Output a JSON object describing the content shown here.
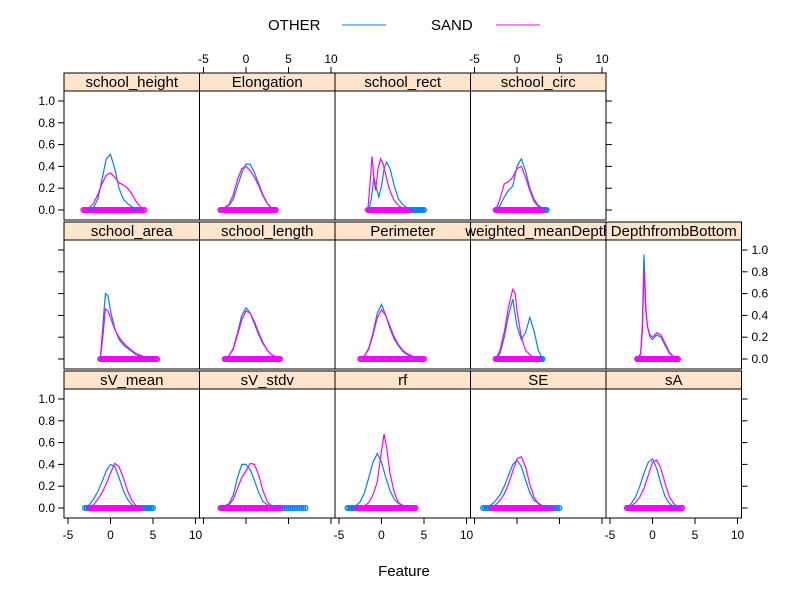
{
  "chart_data": {
    "type": "density",
    "xlabel": "Feature",
    "ylabel": "",
    "xlim": [
      -5,
      10
    ],
    "ylim": [
      0,
      1
    ],
    "x_ticks": [
      "-5",
      "0",
      "5",
      "10"
    ],
    "y_ticks": [
      "0.0",
      "0.2",
      "0.4",
      "0.6",
      "0.8",
      "1.0"
    ],
    "legend": {
      "placement": "top",
      "items": [
        {
          "name": "OTHER",
          "color": "#0080ff"
        },
        {
          "name": "SAND",
          "color": "#ff00ff"
        }
      ]
    },
    "panels": [
      {
        "name": "school_height",
        "series": [
          {
            "name": "OTHER",
            "x": [
              -3,
              -2,
              -1.5,
              -1,
              -0.5,
              0,
              0.5,
              1,
              1.5,
              2,
              2.5,
              3,
              3.5
            ],
            "y": [
              0,
              0.02,
              0.1,
              0.28,
              0.47,
              0.51,
              0.38,
              0.2,
              0.1,
              0.06,
              0.03,
              0.01,
              0
            ]
          },
          {
            "name": "SAND",
            "x": [
              -3.2,
              -2.5,
              -2,
              -1.5,
              -1,
              -0.5,
              0,
              0.5,
              1,
              1.5,
              2,
              2.5,
              3,
              3.5,
              4
            ],
            "y": [
              0,
              0.02,
              0.06,
              0.14,
              0.24,
              0.32,
              0.34,
              0.3,
              0.25,
              0.23,
              0.2,
              0.15,
              0.08,
              0.03,
              0
            ]
          }
        ]
      },
      {
        "name": "Elongation",
        "series": [
          {
            "name": "OTHER",
            "x": [
              -3,
              -2,
              -1.5,
              -1,
              -0.5,
              0,
              0.5,
              1,
              1.5,
              2,
              2.5,
              3,
              3.5
            ],
            "y": [
              0,
              0.04,
              0.1,
              0.22,
              0.34,
              0.42,
              0.42,
              0.34,
              0.24,
              0.14,
              0.06,
              0.02,
              0
            ]
          },
          {
            "name": "SAND",
            "x": [
              -3,
              -2,
              -1.5,
              -1,
              -0.5,
              0,
              0.5,
              1,
              1.5,
              2,
              2.5,
              3,
              3.5
            ],
            "y": [
              0,
              0.05,
              0.14,
              0.28,
              0.38,
              0.4,
              0.36,
              0.3,
              0.22,
              0.13,
              0.06,
              0.02,
              0
            ]
          }
        ]
      },
      {
        "name": "school_rect",
        "series": [
          {
            "name": "OTHER",
            "x": [
              -1.5,
              -1.2,
              -0.9,
              -0.6,
              -0.3,
              0,
              0.3,
              0.6,
              1,
              1.5,
              2,
              2.5,
              3,
              4,
              5
            ],
            "y": [
              0,
              0.1,
              0.3,
              0.2,
              0.12,
              0.22,
              0.38,
              0.44,
              0.38,
              0.22,
              0.1,
              0.05,
              0.02,
              0.005,
              0
            ]
          },
          {
            "name": "SAND",
            "x": [
              -1.6,
              -1.4,
              -1.1,
              -0.9,
              -0.7,
              -0.4,
              -0.1,
              0.2,
              0.5,
              0.9,
              1.4,
              2,
              2.6,
              3.2
            ],
            "y": [
              0,
              0.2,
              0.49,
              0.3,
              0.18,
              0.38,
              0.47,
              0.42,
              0.32,
              0.2,
              0.1,
              0.04,
              0.01,
              0
            ]
          }
        ]
      },
      {
        "name": "school_circ",
        "series": [
          {
            "name": "OTHER",
            "x": [
              -2.5,
              -2,
              -1.5,
              -1,
              -0.5,
              0,
              0.5,
              1,
              1.5,
              2,
              2.5,
              3,
              3.5
            ],
            "y": [
              0,
              0.04,
              0.12,
              0.18,
              0.22,
              0.4,
              0.47,
              0.36,
              0.2,
              0.1,
              0.04,
              0.02,
              0
            ]
          },
          {
            "name": "SAND",
            "x": [
              -2.5,
              -2,
              -1.5,
              -1,
              -0.5,
              0,
              0.5,
              1,
              1.5,
              2,
              2.5,
              3
            ],
            "y": [
              0,
              0.1,
              0.24,
              0.26,
              0.3,
              0.38,
              0.4,
              0.3,
              0.18,
              0.08,
              0.03,
              0
            ]
          }
        ]
      },
      {
        "name": "school_area",
        "series": [
          {
            "name": "OTHER",
            "x": [
              -1.2,
              -0.9,
              -0.6,
              -0.3,
              0,
              0.5,
              1,
              1.5,
              2,
              2.5,
              3,
              4,
              5
            ],
            "y": [
              0,
              0.3,
              0.6,
              0.58,
              0.44,
              0.28,
              0.18,
              0.13,
              0.1,
              0.07,
              0.04,
              0.015,
              0
            ]
          },
          {
            "name": "SAND",
            "x": [
              -1.2,
              -0.9,
              -0.6,
              -0.3,
              0,
              0.5,
              1,
              1.5,
              2,
              2.5,
              3,
              4,
              5.5
            ],
            "y": [
              0,
              0.2,
              0.46,
              0.44,
              0.38,
              0.27,
              0.2,
              0.15,
              0.11,
              0.08,
              0.05,
              0.02,
              0
            ]
          }
        ]
      },
      {
        "name": "school_length",
        "series": [
          {
            "name": "OTHER",
            "x": [
              -2.5,
              -2,
              -1.5,
              -1,
              -0.5,
              0,
              0.5,
              1,
              1.5,
              2,
              2.5,
              3,
              3.5,
              4
            ],
            "y": [
              0,
              0.03,
              0.1,
              0.24,
              0.4,
              0.47,
              0.42,
              0.32,
              0.22,
              0.14,
              0.08,
              0.04,
              0.02,
              0
            ]
          },
          {
            "name": "SAND",
            "x": [
              -2.5,
              -2,
              -1.5,
              -1,
              -0.5,
              0,
              0.5,
              1,
              1.5,
              2,
              2.5,
              3,
              3.5,
              4
            ],
            "y": [
              0,
              0.03,
              0.09,
              0.22,
              0.36,
              0.44,
              0.42,
              0.34,
              0.24,
              0.15,
              0.08,
              0.04,
              0.02,
              0
            ]
          }
        ]
      },
      {
        "name": "Perimeter",
        "series": [
          {
            "name": "OTHER",
            "x": [
              -2.5,
              -2,
              -1.5,
              -1,
              -0.5,
              0,
              0.5,
              1,
              1.5,
              2,
              2.5,
              3,
              4,
              5
            ],
            "y": [
              0,
              0.03,
              0.1,
              0.24,
              0.42,
              0.5,
              0.4,
              0.28,
              0.18,
              0.12,
              0.07,
              0.04,
              0.01,
              0
            ]
          },
          {
            "name": "SAND",
            "x": [
              -2.5,
              -2,
              -1.5,
              -1,
              -0.5,
              0,
              0.5,
              1,
              1.5,
              2,
              2.5,
              3,
              4,
              5
            ],
            "y": [
              0,
              0.03,
              0.09,
              0.22,
              0.38,
              0.45,
              0.4,
              0.3,
              0.2,
              0.13,
              0.08,
              0.05,
              0.015,
              0
            ]
          }
        ]
      },
      {
        "name": "weighted_meanDepth",
        "series": [
          {
            "name": "OTHER",
            "x": [
              -2.5,
              -2,
              -1.5,
              -1,
              -0.5,
              0,
              0.5,
              1,
              1.5,
              2,
              2.5,
              3
            ],
            "y": [
              0,
              0.05,
              0.2,
              0.4,
              0.55,
              0.3,
              0.18,
              0.24,
              0.38,
              0.26,
              0.08,
              0
            ]
          },
          {
            "name": "SAND",
            "x": [
              -2.5,
              -2,
              -1.5,
              -1,
              -0.5,
              -0.2,
              0,
              0.5,
              1,
              1.5,
              2,
              2.5
            ],
            "y": [
              0,
              0.08,
              0.25,
              0.48,
              0.64,
              0.6,
              0.44,
              0.2,
              0.08,
              0.04,
              0.01,
              0
            ]
          }
        ]
      },
      {
        "name": "DepthfrombBottom",
        "series": [
          {
            "name": "OTHER",
            "x": [
              -1.8,
              -1.4,
              -1.2,
              -1,
              -0.8,
              -0.6,
              -0.3,
              0,
              0.5,
              1,
              1.5,
              2,
              2.5,
              3
            ],
            "y": [
              0,
              0.05,
              0.3,
              0.96,
              0.5,
              0.3,
              0.2,
              0.18,
              0.22,
              0.2,
              0.12,
              0.05,
              0.02,
              0
            ]
          },
          {
            "name": "SAND",
            "x": [
              -1.8,
              -1.4,
              -1.2,
              -1,
              -0.8,
              -0.6,
              -0.3,
              0,
              0.5,
              1,
              1.5,
              2,
              2.5,
              3
            ],
            "y": [
              0,
              0.04,
              0.25,
              0.82,
              0.46,
              0.3,
              0.22,
              0.2,
              0.24,
              0.22,
              0.14,
              0.06,
              0.02,
              0
            ]
          }
        ]
      },
      {
        "name": "sV_mean",
        "series": [
          {
            "name": "OTHER",
            "x": [
              -3,
              -2.5,
              -2,
              -1.5,
              -1,
              -0.5,
              0,
              0.5,
              1,
              1.5,
              2,
              2.5,
              3,
              4,
              5
            ],
            "y": [
              0,
              0.03,
              0.08,
              0.15,
              0.24,
              0.34,
              0.4,
              0.38,
              0.28,
              0.16,
              0.08,
              0.03,
              0.01,
              0.005,
              0
            ]
          },
          {
            "name": "SAND",
            "x": [
              -2.5,
              -2,
              -1.5,
              -1,
              -0.5,
              0,
              0.5,
              1,
              1.5,
              2,
              2.5,
              3,
              3.5
            ],
            "y": [
              0,
              0.03,
              0.08,
              0.14,
              0.22,
              0.32,
              0.41,
              0.38,
              0.28,
              0.16,
              0.07,
              0.02,
              0
            ]
          }
        ]
      },
      {
        "name": "sV_stdv",
        "series": [
          {
            "name": "OTHER",
            "x": [
              -3,
              -2,
              -1.5,
              -1,
              -0.5,
              0,
              0.5,
              1,
              1.5,
              2,
              2.5,
              3,
              4,
              5,
              6,
              7
            ],
            "y": [
              0,
              0.04,
              0.12,
              0.28,
              0.4,
              0.4,
              0.35,
              0.25,
              0.14,
              0.06,
              0.03,
              0.015,
              0.005,
              0.003,
              0.002,
              0
            ]
          },
          {
            "name": "SAND",
            "x": [
              -3,
              -2,
              -1.5,
              -1,
              -0.5,
              0,
              0.5,
              1,
              1.5,
              2,
              2.5,
              3,
              4
            ],
            "y": [
              0,
              0.03,
              0.08,
              0.18,
              0.28,
              0.34,
              0.41,
              0.4,
              0.3,
              0.16,
              0.06,
              0.02,
              0
            ]
          }
        ]
      },
      {
        "name": "rf",
        "series": [
          {
            "name": "OTHER",
            "x": [
              -4,
              -3,
              -2.5,
              -2,
              -1.5,
              -1,
              -0.5,
              0,
              0.5,
              1,
              1.5,
              2,
              3,
              4
            ],
            "y": [
              0,
              0.02,
              0.06,
              0.14,
              0.28,
              0.42,
              0.5,
              0.42,
              0.28,
              0.16,
              0.08,
              0.04,
              0.01,
              0
            ]
          },
          {
            "name": "SAND",
            "x": [
              -3,
              -2,
              -1.5,
              -1,
              -0.5,
              0,
              0.3,
              0.6,
              1,
              1.5,
              2,
              2.5,
              3,
              4
            ],
            "y": [
              0,
              0.02,
              0.05,
              0.12,
              0.24,
              0.52,
              0.68,
              0.56,
              0.32,
              0.14,
              0.05,
              0.02,
              0.01,
              0
            ]
          }
        ]
      },
      {
        "name": "SE",
        "series": [
          {
            "name": "OTHER",
            "x": [
              -4,
              -3,
              -2.5,
              -2,
              -1.5,
              -1,
              -0.5,
              0,
              0.5,
              1,
              1.5,
              2,
              3,
              4,
              5
            ],
            "y": [
              0,
              0.03,
              0.07,
              0.12,
              0.2,
              0.3,
              0.4,
              0.44,
              0.38,
              0.26,
              0.14,
              0.07,
              0.02,
              0.005,
              0
            ]
          },
          {
            "name": "SAND",
            "x": [
              -3,
              -2.5,
              -2,
              -1.5,
              -1,
              -0.5,
              0,
              0.5,
              1,
              1.5,
              2,
              2.5,
              3,
              4
            ],
            "y": [
              0,
              0.03,
              0.07,
              0.13,
              0.22,
              0.34,
              0.45,
              0.47,
              0.38,
              0.22,
              0.1,
              0.04,
              0.01,
              0
            ]
          }
        ]
      },
      {
        "name": "sA",
        "series": [
          {
            "name": "OTHER",
            "x": [
              -3,
              -2.5,
              -2,
              -1.5,
              -1,
              -0.5,
              0,
              0.5,
              1,
              1.5,
              2,
              2.5,
              3
            ],
            "y": [
              0,
              0.04,
              0.1,
              0.2,
              0.32,
              0.42,
              0.45,
              0.36,
              0.22,
              0.1,
              0.04,
              0.01,
              0
            ]
          },
          {
            "name": "SAND",
            "x": [
              -3,
              -2.5,
              -2,
              -1.5,
              -1,
              -0.5,
              0,
              0.5,
              1,
              1.5,
              2,
              2.5,
              3,
              3.5
            ],
            "y": [
              0,
              0.02,
              0.05,
              0.1,
              0.18,
              0.3,
              0.42,
              0.44,
              0.36,
              0.22,
              0.1,
              0.04,
              0.01,
              0
            ]
          }
        ]
      }
    ]
  }
}
